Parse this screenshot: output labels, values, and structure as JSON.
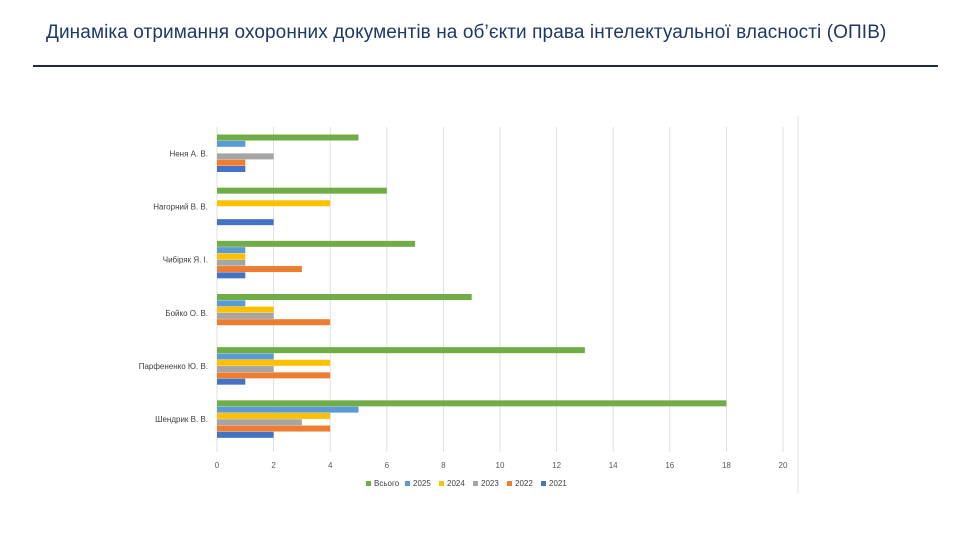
{
  "slide": {
    "title": "Динаміка отримання охоронних документів на об’єкти права інтелектуальної власності (ОПІВ)"
  },
  "chart_data": {
    "type": "bar",
    "orientation": "horizontal",
    "title": "",
    "xlabel": "",
    "ylabel": "",
    "xlim": [
      0,
      20
    ],
    "xticks": [
      0,
      2,
      4,
      6,
      8,
      10,
      12,
      14,
      16,
      18,
      20
    ],
    "grid": true,
    "legend_position": "bottom",
    "categories": [
      "Неня А. В.",
      "Нагорний В. В.",
      "Чибіряк Я. І.",
      "Бойко О. В.",
      "Парфененко Ю. В.",
      "Шендрик В. В."
    ],
    "series": [
      {
        "name": "Всього",
        "color": "#70ad47",
        "values": [
          5,
          6,
          7,
          9,
          13,
          18
        ]
      },
      {
        "name": "2025",
        "color": "#5b9bd5",
        "values": [
          1,
          0,
          1,
          1,
          2,
          5
        ]
      },
      {
        "name": "2024",
        "color": "#ffc000",
        "values": [
          0,
          4,
          1,
          2,
          4,
          4
        ]
      },
      {
        "name": "2023",
        "color": "#a5a5a5",
        "values": [
          2,
          0,
          1,
          2,
          2,
          3
        ]
      },
      {
        "name": "2022",
        "color": "#ed7d31",
        "values": [
          1,
          0,
          3,
          4,
          4,
          4
        ]
      },
      {
        "name": "2021",
        "color": "#4472c4",
        "values": [
          1,
          2,
          1,
          0,
          1,
          2
        ]
      }
    ],
    "legend_order": [
      "Всього",
      "2025",
      "2024",
      "2023",
      "2022",
      "2021"
    ]
  }
}
